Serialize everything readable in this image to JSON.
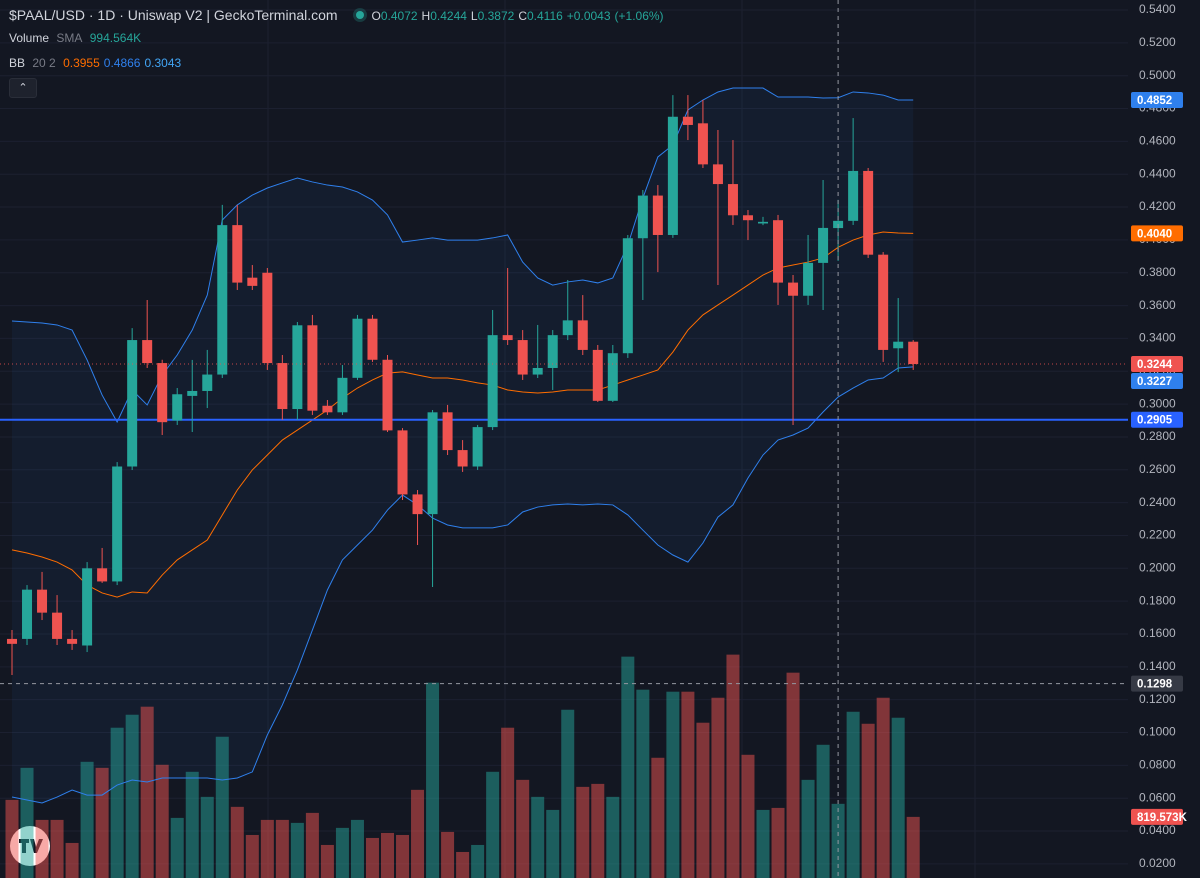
{
  "chart_data": {
    "type": "candlestick",
    "title": "$PAAL/USD · 1D · Uniswap V2 | GeckoTerminal.com",
    "up_color": "#26a69a",
    "down_color": "#ef5350",
    "ohlc_labels": [
      "O",
      "H",
      "L",
      "C"
    ],
    "change": "+0.0043",
    "change_pct": "(+1.06%)",
    "open": [
      0.157,
      0.157,
      0.187,
      0.173,
      0.157,
      0.153,
      0.2,
      0.192,
      0.262,
      0.339,
      0.325,
      0.29,
      0.305,
      0.308,
      0.318,
      0.409,
      0.377,
      0.38,
      0.325,
      0.297,
      0.348,
      0.299,
      0.295,
      0.316,
      0.352,
      0.327,
      0.284,
      0.245,
      0.233,
      0.295,
      0.272,
      0.262,
      0.286,
      0.342,
      0.339,
      0.318,
      0.322,
      0.342,
      0.351,
      0.333,
      0.302,
      0.331,
      0.401,
      0.427,
      0.403,
      0.475,
      0.471,
      0.446,
      0.434,
      0.415,
      0.41,
      0.412,
      0.374,
      0.366,
      0.386,
      0.4072,
      0.4116,
      0.442,
      0.391,
      0.334,
      0.338
    ],
    "high": [
      0.1624,
      0.1898,
      0.1978,
      0.1837,
      0.1624,
      0.2038,
      0.2124,
      0.2647,
      0.3463,
      0.3634,
      0.327,
      0.3098,
      0.3269,
      0.333,
      0.4213,
      0.4213,
      0.3847,
      0.3829,
      0.3299,
      0.35,
      0.3543,
      0.3025,
      0.3238,
      0.3543,
      0.3543,
      0.3299,
      0.2854,
      0.2477,
      0.2964,
      0.2995,
      0.2781,
      0.2873,
      0.3573,
      0.3829,
      0.3451,
      0.3482,
      0.3451,
      0.3756,
      0.3664,
      0.336,
      0.336,
      0.403,
      0.4304,
      0.4334,
      0.4882,
      0.4882,
      0.4852,
      0.4669,
      0.4608,
      0.4182,
      0.414,
      0.4152,
      0.3786,
      0.403,
      0.4365,
      0.4244,
      0.4742,
      0.4438,
      0.3926,
      0.3646,
      0.339
    ],
    "low": [
      0.135,
      0.1533,
      0.1685,
      0.1533,
      0.1503,
      0.149,
      0.1911,
      0.1898,
      0.2599,
      0.322,
      0.2812,
      0.2873,
      0.283,
      0.2976,
      0.3159,
      0.3695,
      0.3695,
      0.3208,
      0.2903,
      0.2903,
      0.2934,
      0.2934,
      0.2934,
      0.3147,
      0.3257,
      0.283,
      0.2416,
      0.2142,
      0.1886,
      0.269,
      0.2587,
      0.2599,
      0.2842,
      0.336,
      0.3147,
      0.3159,
      0.3086,
      0.339,
      0.3299,
      0.3013,
      0.3013,
      0.3281,
      0.3634,
      0.3804,
      0.4012,
      0.4608,
      0.4438,
      0.3725,
      0.4091,
      0.3999,
      0.409,
      0.3604,
      0.2873,
      0.3604,
      0.3573,
      0.3872,
      0.4091,
      0.389,
      0.3257,
      0.3195,
      0.3208
    ],
    "close": [
      0.154,
      0.187,
      0.173,
      0.157,
      0.154,
      0.2,
      0.192,
      0.262,
      0.339,
      0.325,
      0.289,
      0.306,
      0.308,
      0.318,
      0.409,
      0.374,
      0.372,
      0.325,
      0.297,
      0.348,
      0.296,
      0.295,
      0.316,
      0.352,
      0.327,
      0.284,
      0.245,
      0.233,
      0.295,
      0.272,
      0.262,
      0.286,
      0.342,
      0.339,
      0.318,
      0.322,
      0.342,
      0.351,
      0.333,
      0.302,
      0.331,
      0.401,
      0.427,
      0.403,
      0.475,
      0.47,
      0.446,
      0.434,
      0.415,
      0.412,
      0.411,
      0.374,
      0.366,
      0.386,
      0.4073,
      0.4116,
      0.442,
      0.391,
      0.333,
      0.338,
      0.3244
    ],
    "volume": {
      "name": "Volume",
      "indicator": "SMA",
      "values": [
        1048,
        1477,
        779,
        779,
        470,
        1558,
        1477,
        2015,
        2189,
        2297,
        1518,
        806,
        1424,
        1088,
        1894,
        954,
        577,
        779,
        779,
        739,
        873,
        443,
        672,
        779,
        537,
        604,
        577,
        1182,
        2619,
        618,
        349,
        443,
        1424,
        2015,
        1316,
        1088,
        913,
        2256,
        1222,
        1262,
        1088,
        2968,
        2525,
        1612,
        2498,
        2498,
        2082,
        2417,
        2995,
        1652,
        913,
        940,
        2753,
        1316,
        1786,
        994.564,
        2229,
        2068,
        2417,
        2149,
        819.573
      ],
      "legend_label": "994.564K",
      "last_label": "819.573K",
      "ylim": [
        0,
        4800
      ]
    },
    "bollinger": {
      "name": "BB",
      "params": "20 2",
      "middle": {
        "color": "#ff6d00",
        "last_label": "0.4040",
        "values": [
          0.2112,
          0.2093,
          0.2069,
          0.2038,
          0.199,
          0.1898,
          0.185,
          0.1825,
          0.1856,
          0.185,
          0.1959,
          0.2051,
          0.2112,
          0.2172,
          0.2325,
          0.2477,
          0.2599,
          0.269,
          0.2781,
          0.2842,
          0.2903,
          0.2964,
          0.3037,
          0.3098,
          0.3147,
          0.3189,
          0.3196,
          0.3177,
          0.3159,
          0.3159,
          0.3147,
          0.3129,
          0.3116,
          0.3086,
          0.3074,
          0.3068,
          0.3074,
          0.3086,
          0.3086,
          0.3086,
          0.3116,
          0.3147,
          0.3177,
          0.3208,
          0.3317,
          0.3451,
          0.3543,
          0.3604,
          0.3664,
          0.3725,
          0.3786,
          0.3829,
          0.3847,
          0.3865,
          0.389,
          0.3955,
          0.3999,
          0.403,
          0.4048,
          0.4042,
          0.404
        ]
      },
      "upper": {
        "color": "#2f80ed",
        "values": [
          0.3506,
          0.35,
          0.3494,
          0.3482,
          0.3451,
          0.3269,
          0.3055,
          0.2891,
          0.3086,
          0.2995,
          0.3177,
          0.3299,
          0.3451,
          0.3664,
          0.4121,
          0.4213,
          0.4273,
          0.4316,
          0.4347,
          0.4377,
          0.4353,
          0.4334,
          0.4322,
          0.4292,
          0.4243,
          0.4152,
          0.3987,
          0.3999,
          0.4012,
          0.3999,
          0.3999,
          0.3999,
          0.4012,
          0.403,
          0.3865,
          0.3768,
          0.3725,
          0.3744,
          0.3756,
          0.3738,
          0.3768,
          0.3969,
          0.4255,
          0.4505,
          0.4578,
          0.4791,
          0.4852,
          0.4901,
          0.4925,
          0.4925,
          0.4925,
          0.487,
          0.487,
          0.487,
          0.4864,
          0.4866,
          0.4901,
          0.4895,
          0.4882,
          0.4852,
          0.4852
        ]
      },
      "lower": {
        "color": "#2f80ed",
        "values": [
          0.0607,
          0.0589,
          0.0571,
          0.0607,
          0.065,
          0.0619,
          0.0619,
          0.068,
          0.0711,
          0.0699,
          0.0723,
          0.0723,
          0.0723,
          0.0723,
          0.0711,
          0.0723,
          0.076,
          0.0985,
          0.1168,
          0.1381,
          0.1624,
          0.1868,
          0.2051,
          0.2142,
          0.2233,
          0.2355,
          0.2446,
          0.2386,
          0.2306,
          0.2264,
          0.2246,
          0.2246,
          0.2246,
          0.2264,
          0.2343,
          0.2373,
          0.2386,
          0.2392,
          0.2386,
          0.2392,
          0.2386,
          0.2325,
          0.2233,
          0.2142,
          0.2081,
          0.2038,
          0.2154,
          0.2312,
          0.2386,
          0.255,
          0.269,
          0.2781,
          0.2812,
          0.2854,
          0.2952,
          0.3043,
          0.3098,
          0.3147,
          0.3159,
          0.322,
          0.3227
        ]
      }
    },
    "horizontal_line": {
      "value": 0.2905,
      "color": "#2962ff"
    },
    "crosshair": {
      "price": 0.1298
    },
    "ylim": [
      0.0114,
      0.5461
    ],
    "yticks": [
      {
        "value": 0.54,
        "label": "0.5400"
      },
      {
        "value": 0.52,
        "label": "0.5200"
      },
      {
        "value": 0.5,
        "label": "0.5000"
      },
      {
        "value": 0.48,
        "label": "0.4800"
      },
      {
        "value": 0.46,
        "label": "0.4600"
      },
      {
        "value": 0.44,
        "label": "0.4400"
      },
      {
        "value": 0.42,
        "label": "0.4200"
      },
      {
        "value": 0.4,
        "label": "0.4000"
      },
      {
        "value": 0.38,
        "label": "0.3800"
      },
      {
        "value": 0.36,
        "label": "0.3600"
      },
      {
        "value": 0.34,
        "label": "0.3400"
      },
      {
        "value": 0.32,
        "label": "0.3200"
      },
      {
        "value": 0.3,
        "label": "0.3000"
      },
      {
        "value": 0.28,
        "label": "0.2800"
      },
      {
        "value": 0.26,
        "label": "0.2600"
      },
      {
        "value": 0.24,
        "label": "0.2400"
      },
      {
        "value": 0.22,
        "label": "0.2200"
      },
      {
        "value": 0.2,
        "label": "0.2000"
      },
      {
        "value": 0.18,
        "label": "0.1800"
      },
      {
        "value": 0.16,
        "label": "0.1600"
      },
      {
        "value": 0.14,
        "label": "0.1400"
      },
      {
        "value": 0.12,
        "label": "0.1200"
      },
      {
        "value": 0.1,
        "label": "0.1000"
      },
      {
        "value": 0.08,
        "label": "0.0800"
      },
      {
        "value": 0.06,
        "label": "0.0600"
      },
      {
        "value": 0.04,
        "label": "0.0400"
      },
      {
        "value": 0.02,
        "label": "0.0200"
      }
    ],
    "grid": true
  }
}
